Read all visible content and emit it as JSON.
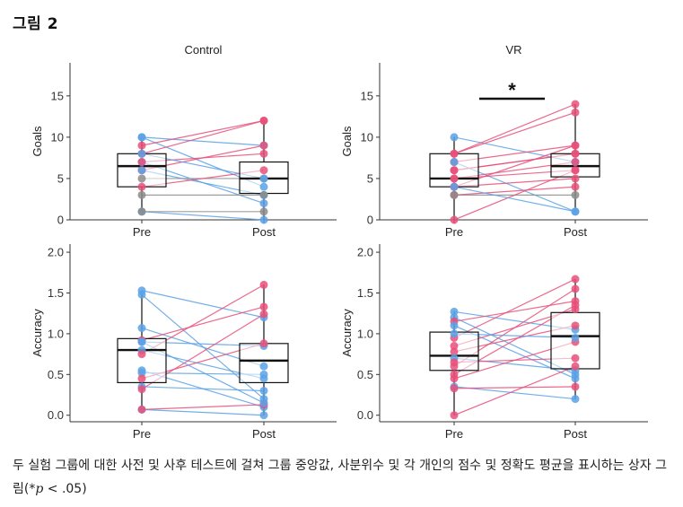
{
  "figure": {
    "title": "그림 2",
    "caption_main": "두 실험 그룹에 대한 사전 및 사후 테스트에 걸쳐 그룹 중앙값, 사분위수 및 각 개인의 점수 및 정확도 평균을 표시하는 상자 그림(*",
    "caption_p": "p",
    "caption_tail": " < .05)"
  },
  "colors": {
    "increase": "#e8507a",
    "decrease": "#5aa2e6",
    "flat": "#8c8c8c"
  },
  "chart_data": [
    {
      "type": "box",
      "title": "Control",
      "ylabel": "Goals",
      "categories": [
        "Pre",
        "Post"
      ],
      "ylim": [
        0,
        19
      ],
      "yticks": [
        0,
        5,
        10,
        15
      ],
      "ytick_labels": [
        "0",
        "5",
        "10",
        "15"
      ],
      "box_pre": {
        "min": 1,
        "q1": 4,
        "median": 6.5,
        "q3": 8,
        "max": 10
      },
      "box_post": {
        "min": 0,
        "q1": 3.2,
        "median": 5,
        "q3": 7,
        "max": 12
      },
      "significance": "",
      "pairs": [
        [
          10,
          9
        ],
        [
          10,
          4
        ],
        [
          9,
          12
        ],
        [
          8,
          12
        ],
        [
          7,
          2
        ],
        [
          7,
          8
        ],
        [
          6,
          9
        ],
        [
          6,
          3
        ],
        [
          5,
          5
        ],
        [
          4,
          6
        ],
        [
          3,
          3
        ],
        [
          1,
          0
        ],
        [
          1,
          1
        ],
        [
          8,
          5
        ]
      ]
    },
    {
      "type": "box",
      "title": "VR",
      "ylabel": "Goals",
      "categories": [
        "Pre",
        "Post"
      ],
      "ylim": [
        0,
        19
      ],
      "yticks": [
        0,
        5,
        10,
        15
      ],
      "ytick_labels": [
        "0",
        "5",
        "10",
        "15"
      ],
      "box_pre": {
        "min": 0,
        "q1": 4,
        "median": 5,
        "q3": 8,
        "max": 10
      },
      "box_post": {
        "min": 1,
        "q1": 5.2,
        "median": 6.5,
        "q3": 8,
        "max": 14
      },
      "significance": "*",
      "pairs": [
        [
          10,
          7
        ],
        [
          8,
          14
        ],
        [
          8,
          13
        ],
        [
          7,
          9
        ],
        [
          7,
          1
        ],
        [
          6,
          8
        ],
        [
          5,
          7
        ],
        [
          5,
          6
        ],
        [
          4,
          9
        ],
        [
          4,
          5
        ],
        [
          3,
          4
        ],
        [
          3,
          3
        ],
        [
          0,
          6
        ],
        [
          4,
          1
        ],
        [
          6,
          8
        ]
      ]
    },
    {
      "type": "box",
      "title": "",
      "ylabel": "Accuracy",
      "categories": [
        "Pre",
        "Post"
      ],
      "ylim": [
        -0.08,
        2.1
      ],
      "yticks": [
        0,
        0.5,
        1,
        1.5,
        2
      ],
      "ytick_labels": [
        "0.0",
        "0.5",
        "1.0",
        "1.5",
        "2.0"
      ],
      "box_pre": {
        "min": 0.07,
        "q1": 0.4,
        "median": 0.8,
        "q3": 0.94,
        "max": 1.53
      },
      "box_post": {
        "min": 0,
        "q1": 0.4,
        "median": 0.67,
        "q3": 0.88,
        "max": 1.6
      },
      "significance": "",
      "pairs": [
        [
          1.53,
          1.2
        ],
        [
          1.48,
          0.2
        ],
        [
          1.07,
          0.6
        ],
        [
          0.92,
          1.33
        ],
        [
          0.9,
          0.85
        ],
        [
          0.8,
          0.45
        ],
        [
          0.75,
          1.6
        ],
        [
          0.55,
          0.1
        ],
        [
          0.52,
          0.5
        ],
        [
          0.45,
          0.88
        ],
        [
          0.35,
          0.3
        ],
        [
          0.32,
          1.24
        ],
        [
          0.07,
          0.0
        ],
        [
          0.07,
          0.13
        ],
        [
          0.9,
          0.15
        ]
      ]
    },
    {
      "type": "box",
      "title": "",
      "ylabel": "Accuracy",
      "categories": [
        "Pre",
        "Post"
      ],
      "ylim": [
        -0.08,
        2.1
      ],
      "yticks": [
        0,
        0.5,
        1,
        1.5,
        2
      ],
      "ytick_labels": [
        "0.0",
        "0.5",
        "1.0",
        "1.5",
        "2.0"
      ],
      "box_pre": {
        "min": 0,
        "q1": 0.55,
        "median": 0.73,
        "q3": 1.02,
        "max": 1.27
      },
      "box_post": {
        "min": 0.2,
        "q1": 0.57,
        "median": 0.97,
        "q3": 1.26,
        "max": 1.67
      },
      "significance": "",
      "pairs": [
        [
          1.27,
          1.05
        ],
        [
          1.2,
          0.5
        ],
        [
          1.15,
          1.4
        ],
        [
          1.1,
          0.45
        ],
        [
          0.95,
          1.67
        ],
        [
          0.85,
          1.3
        ],
        [
          0.78,
          1.1
        ],
        [
          0.7,
          0.55
        ],
        [
          0.65,
          0.7
        ],
        [
          0.6,
          1.55
        ],
        [
          0.5,
          1.35
        ],
        [
          0.45,
          0.9
        ],
        [
          0.35,
          0.2
        ],
        [
          0.33,
          0.35
        ],
        [
          0.0,
          0.6
        ],
        [
          1.0,
          0.95
        ]
      ]
    }
  ]
}
